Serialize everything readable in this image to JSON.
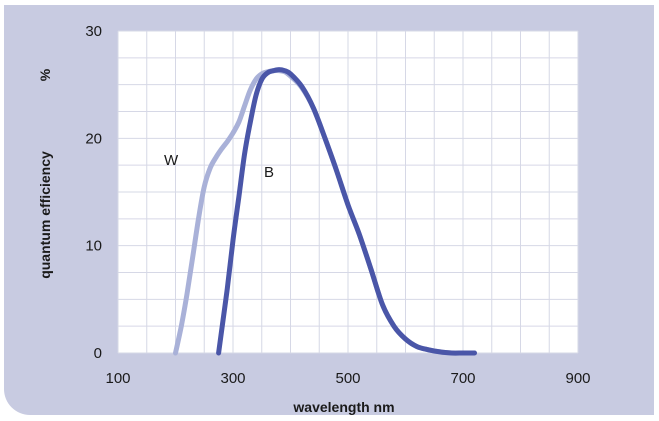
{
  "chart_data": {
    "type": "line",
    "title": "",
    "xlabel": "wavelength  nm",
    "ylabel": "quantum efficiency",
    "yunit": "%",
    "xlim": [
      100,
      900
    ],
    "ylim": [
      0,
      30
    ],
    "xticks": [
      100,
      300,
      500,
      700,
      900
    ],
    "yticks": [
      0,
      10,
      20,
      30
    ],
    "grid": true,
    "colors": {
      "background": "#c8cbe1",
      "plot_area": "#ffffff",
      "grid": "#d6d8e6",
      "series_w": "#a9b1d8",
      "series_b": "#4a56a8"
    },
    "series": [
      {
        "name": "W",
        "x": [
          200,
          210,
          220,
          230,
          240,
          250,
          260,
          270,
          280,
          290,
          300,
          310,
          320,
          330,
          340,
          350,
          360,
          370,
          380,
          390,
          400,
          420,
          440,
          460,
          480,
          500,
          520,
          540,
          560,
          580,
          600,
          620,
          640,
          660,
          680,
          700,
          720
        ],
        "values": [
          0.0,
          2.5,
          5.5,
          9.0,
          12.5,
          15.5,
          17.2,
          18.2,
          19.0,
          19.7,
          20.5,
          21.5,
          23.0,
          24.5,
          25.5,
          26.0,
          26.2,
          26.3,
          26.3,
          26.2,
          25.8,
          24.7,
          22.8,
          20.0,
          17.0,
          13.8,
          11.0,
          7.8,
          4.5,
          2.5,
          1.3,
          0.6,
          0.3,
          0.1,
          0.0,
          0.0,
          0.0
        ]
      },
      {
        "name": "B",
        "x": [
          275,
          280,
          290,
          300,
          310,
          320,
          330,
          340,
          350,
          360,
          370,
          380,
          390,
          400,
          420,
          440,
          460,
          480,
          500,
          520,
          540,
          560,
          580,
          600,
          620,
          640,
          660,
          680,
          700,
          720
        ],
        "values": [
          0.0,
          2.0,
          6.0,
          10.5,
          14.5,
          18.5,
          21.5,
          24.0,
          25.5,
          26.1,
          26.3,
          26.4,
          26.3,
          26.0,
          24.8,
          22.8,
          20.0,
          17.0,
          13.8,
          11.0,
          7.8,
          4.5,
          2.5,
          1.3,
          0.6,
          0.3,
          0.1,
          0.0,
          0.0,
          0.0
        ]
      }
    ]
  }
}
